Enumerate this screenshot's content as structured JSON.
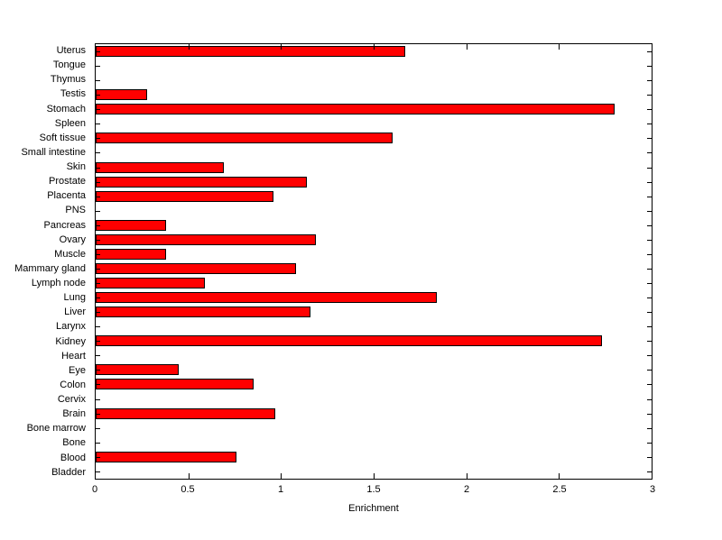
{
  "chart_data": {
    "type": "bar",
    "orientation": "horizontal",
    "title": "",
    "xlabel": "Enrichment",
    "ylabel": "",
    "xlim": [
      0,
      3
    ],
    "xticks": [
      0,
      0.5,
      1,
      1.5,
      2,
      2.5,
      3
    ],
    "xtick_labels": [
      "0",
      "0.5",
      "1",
      "1.5",
      "2",
      "2.5",
      "3"
    ],
    "grid": false,
    "legend": false,
    "bar_color": "#ff0000",
    "bar_edge_color": "#000000",
    "categories_top_to_bottom": [
      "Uterus",
      "Tongue",
      "Thymus",
      "Testis",
      "Stomach",
      "Spleen",
      "Soft tissue",
      "Small intestine",
      "Skin",
      "Prostate",
      "Placenta",
      "PNS",
      "Pancreas",
      "Ovary",
      "Muscle",
      "Mammary gland",
      "Lymph node",
      "Lung",
      "Liver",
      "Larynx",
      "Kidney",
      "Heart",
      "Eye",
      "Colon",
      "Cervix",
      "Brain",
      "Bone marrow",
      "Bone",
      "Blood",
      "Bladder"
    ],
    "values": [
      1.67,
      0,
      0,
      0.28,
      2.8,
      0,
      1.6,
      0,
      0.69,
      1.14,
      0.96,
      0,
      0.38,
      1.19,
      0.38,
      1.08,
      0.59,
      1.84,
      1.16,
      0,
      2.73,
      0,
      0.45,
      0.85,
      0,
      0.97,
      0,
      0,
      0.76,
      0
    ]
  }
}
